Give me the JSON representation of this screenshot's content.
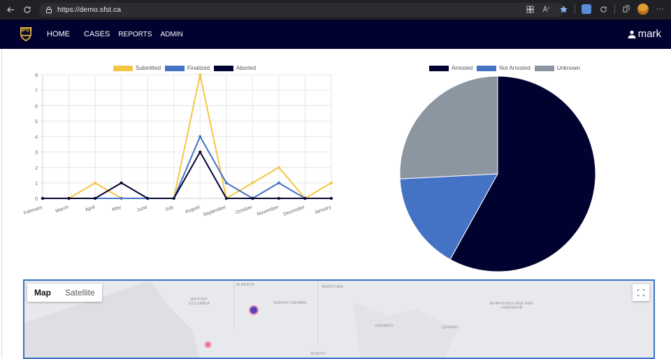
{
  "browser": {
    "url": "https://demo.sfst.ca",
    "icons": [
      "back-icon",
      "reload-icon",
      "lock-icon",
      "grid-icon",
      "read-aloud-icon",
      "star-icon",
      "extension-icon",
      "refresh-icon",
      "collections-icon",
      "profile-avatar",
      "more-icon"
    ]
  },
  "header": {
    "logo_text": "SFST",
    "nav": [
      "HOME",
      "CASES",
      "REPORTS",
      "ADMIN"
    ],
    "user": "mark"
  },
  "colors": {
    "header_bg": "#020230",
    "submitted": "#f5c542",
    "finalized": "#4472c4",
    "aborted": "#020230",
    "arrested": "#020230",
    "not_arrested": "#4472c4",
    "unknown": "#8c96a0",
    "map_border": "#3a72c6"
  },
  "chart_data": [
    {
      "type": "line",
      "categories": [
        "February",
        "March",
        "April",
        "May",
        "June",
        "July",
        "August",
        "September",
        "October",
        "November",
        "December",
        "January"
      ],
      "series": [
        {
          "name": "Submitted",
          "values": [
            0,
            0,
            1,
            0,
            0,
            0,
            8,
            0,
            1,
            2,
            0,
            1
          ]
        },
        {
          "name": "Finalized",
          "values": [
            0,
            0,
            0,
            0,
            0,
            0,
            4,
            1,
            0,
            1,
            0,
            0
          ]
        },
        {
          "name": "Aborted",
          "values": [
            0,
            0,
            0,
            1,
            0,
            0,
            3,
            0,
            0,
            0,
            0,
            0
          ]
        }
      ],
      "yticks": [
        "0",
        "1",
        "2",
        "3",
        "4",
        "5",
        "6",
        "7",
        "8"
      ],
      "ylim": [
        0,
        8
      ],
      "grid": true,
      "legend": "top"
    },
    {
      "type": "pie",
      "categories": [
        "Arrested",
        "Not Arrested",
        "Unknown"
      ],
      "values": [
        18,
        5,
        8
      ],
      "legend": "top"
    }
  ],
  "map": {
    "type_buttons": [
      "Map",
      "Satellite"
    ],
    "active_type": "Map",
    "places": [
      "ALBERTA",
      "MANITOBA",
      "BRITISH COLUMBIA",
      "SASKATCHEWAN",
      "NEWFOUNDLAND AND LABRADOR",
      "ONTARIO",
      "QUEBEC",
      "NORTH"
    ]
  }
}
